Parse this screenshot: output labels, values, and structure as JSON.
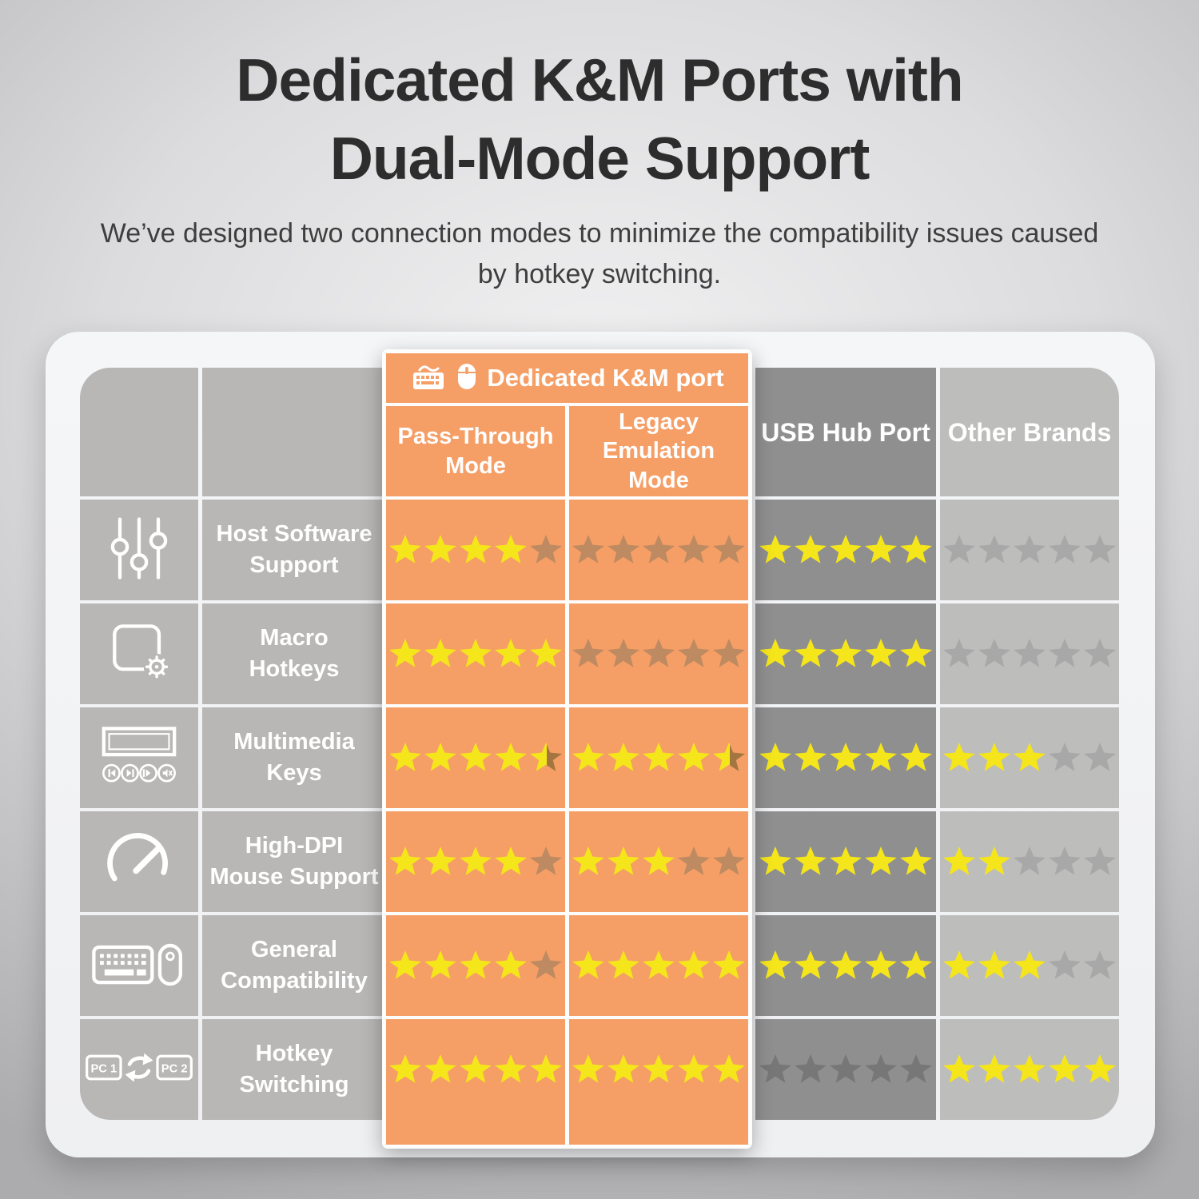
{
  "page": {
    "title": "Dedicated K&M Ports with\nDual-Mode Support",
    "subtitle": "We’ve designed two connection modes to minimize the compatibility issues caused by hotkey switching."
  },
  "table": {
    "group_header": "Dedicated K&M port",
    "group_header_icons": [
      "keyboard-icon",
      "mouse-icon"
    ],
    "rows": [
      {
        "icon": "sliders-icon",
        "feature": "Host Software\nSupport"
      },
      {
        "icon": "macro-icon",
        "feature": "Macro\nHotkeys"
      },
      {
        "icon": "multimedia-icon",
        "feature": "Multimedia\nKeys"
      },
      {
        "icon": "gauge-icon",
        "feature": "High-DPI\nMouse Support"
      },
      {
        "icon": "keyboard-mouse-icon",
        "feature": "General\nCompatibility"
      },
      {
        "icon": "pc-switch-icon",
        "feature": "Hotkey\nSwitching"
      }
    ]
  },
  "chart_data": {
    "type": "table",
    "title": "Dedicated K&M Ports with Dual-Mode Support",
    "subtitle": "We’ve designed two connection modes to minimize the compatibility issues caused by hotkey switching.",
    "rating_scale": [
      0,
      5
    ],
    "categories": [
      "Host Software Support",
      "Macro Hotkeys",
      "Multimedia Keys",
      "High-DPI Mouse Support",
      "General Compatibility",
      "Hotkey Switching"
    ],
    "series": [
      {
        "name": "Pass-Through Mode",
        "group": "Dedicated K&M port",
        "style": "orange",
        "values": [
          4,
          5,
          4.5,
          4,
          4,
          5
        ]
      },
      {
        "name": "Legacy Emulation Mode",
        "group": "Dedicated K&M port",
        "style": "orange",
        "values": [
          0,
          0,
          4.5,
          3,
          5,
          5
        ]
      },
      {
        "name": "USB Hub Port",
        "group": "",
        "style": "dark",
        "values": [
          5,
          5,
          5,
          5,
          5,
          0
        ]
      },
      {
        "name": "Other Brands",
        "group": "",
        "style": "light",
        "values": [
          0,
          0,
          3,
          2,
          3,
          5
        ]
      }
    ]
  },
  "colors": {
    "accent_orange": "#F59E66",
    "panel_white": "#FDFDFD",
    "col_gray": "#B8B7B5",
    "col_dark": "#8F8F8F",
    "col_light": "#BDBDBC",
    "star_yellow": "#F5E51B",
    "star_muted_orange": "#BE8A61",
    "star_muted_dark": "#777777",
    "star_muted_light": "#A8A8A8",
    "star_half_shadow": "#A3763F",
    "title_text": "#2D2D2D",
    "body_text": "#3E3E3E"
  }
}
